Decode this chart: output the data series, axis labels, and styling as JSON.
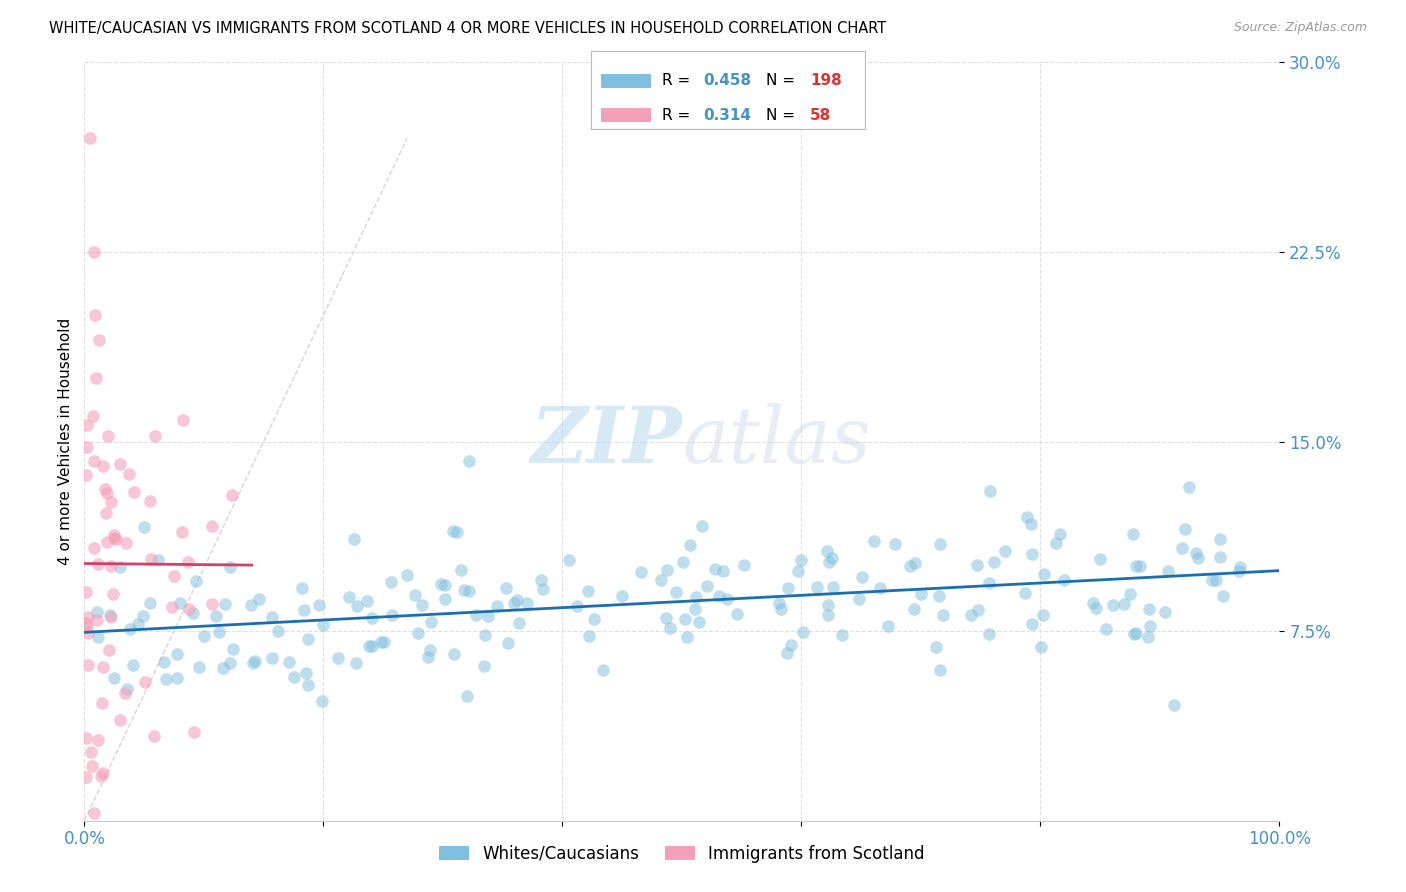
{
  "title": "WHITE/CAUCASIAN VS IMMIGRANTS FROM SCOTLAND 4 OR MORE VEHICLES IN HOUSEHOLD CORRELATION CHART",
  "source": "Source: ZipAtlas.com",
  "ylabel": "4 or more Vehicles in Household",
  "xlim": [
    0,
    1.0
  ],
  "ylim": [
    0,
    0.3
  ],
  "ytick_values": [
    0.075,
    0.15,
    0.225,
    0.3
  ],
  "ytick_labels": [
    "7.5%",
    "15.0%",
    "22.5%",
    "30.0%"
  ],
  "xtick_values": [
    0.0,
    0.2,
    0.4,
    0.6,
    0.8,
    1.0
  ],
  "xtick_labels": [
    "0.0%",
    "",
    "",
    "",
    "",
    "100.0%"
  ],
  "legend_labels": [
    "Whites/Caucasians",
    "Immigrants from Scotland"
  ],
  "R_blue": 0.458,
  "N_blue": 198,
  "R_pink": 0.314,
  "N_pink": 58,
  "blue_color": "#7fbfdf",
  "pink_color": "#f4a0b8",
  "blue_line_color": "#1a6faf",
  "pink_line_color": "#d43f6a",
  "diagonal_color": "#cccccc",
  "watermark_zip": "ZIP",
  "watermark_atlas": "atlas",
  "axis_label_color": "#4393c3",
  "grid_color": "#e0e0e0",
  "seed": 42
}
